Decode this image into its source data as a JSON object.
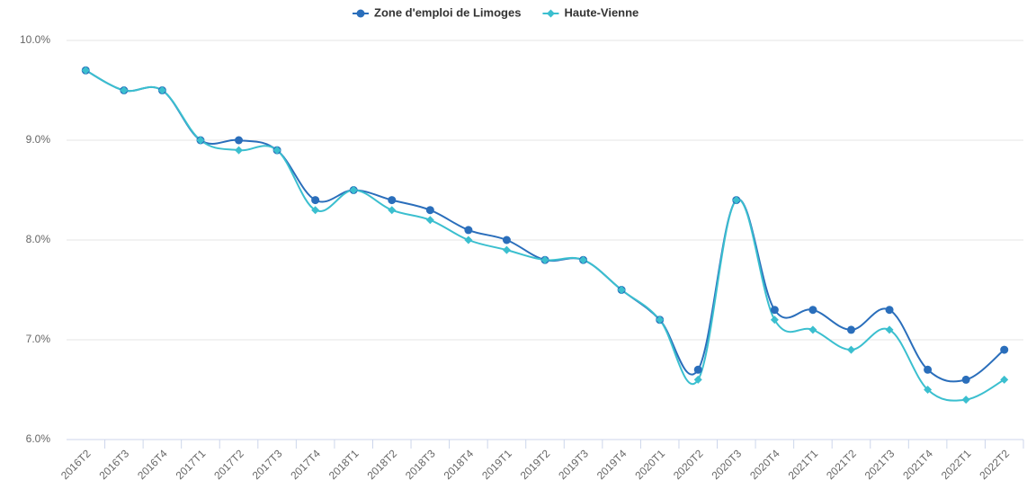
{
  "chart_data": {
    "type": "line",
    "categories": [
      "2016T2",
      "2016T3",
      "2016T4",
      "2017T1",
      "2017T2",
      "2017T3",
      "2017T4",
      "2018T1",
      "2018T2",
      "2018T3",
      "2018T4",
      "2019T1",
      "2019T2",
      "2019T3",
      "2019T4",
      "2020T1",
      "2020T2",
      "2020T3",
      "2020T4",
      "2021T1",
      "2021T2",
      "2021T3",
      "2021T4",
      "2022T1",
      "2022T2"
    ],
    "series": [
      {
        "name": "Zone d'emploi de Limoges",
        "color": "#2a6ebb",
        "marker": "circle",
        "values": [
          9.7,
          9.5,
          9.5,
          9.0,
          9.0,
          8.9,
          8.4,
          8.5,
          8.4,
          8.3,
          8.1,
          8.0,
          7.8,
          7.8,
          7.5,
          7.2,
          6.7,
          8.4,
          7.3,
          7.3,
          7.1,
          7.3,
          6.7,
          6.6,
          6.9
        ]
      },
      {
        "name": "Haute-Vienne",
        "color": "#3bbfcf",
        "marker": "diamond",
        "values": [
          9.7,
          9.5,
          9.5,
          9.0,
          8.9,
          8.9,
          8.3,
          8.5,
          8.3,
          8.2,
          8.0,
          7.9,
          7.8,
          7.8,
          7.5,
          7.2,
          6.6,
          8.4,
          7.2,
          7.1,
          6.9,
          7.1,
          6.5,
          6.4,
          6.6
        ]
      }
    ],
    "ylim": [
      6,
      10
    ],
    "yticks": [
      {
        "value": 6,
        "label": "6.0%"
      },
      {
        "value": 7,
        "label": "7.0%"
      },
      {
        "value": 8,
        "label": "8.0%"
      },
      {
        "value": 9,
        "label": "9.0%"
      },
      {
        "value": 10,
        "label": "10.0%"
      }
    ],
    "grid": true,
    "legend": "top"
  }
}
